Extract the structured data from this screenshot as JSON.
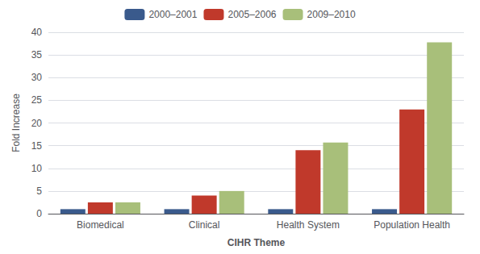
{
  "chart_data": {
    "type": "bar",
    "categories": [
      "Biomedical",
      "Clinical",
      "Health System",
      "Population Health"
    ],
    "series": [
      {
        "name": "2000–2001",
        "color": "#3a5a8c",
        "values": [
          1.0,
          1.0,
          1.0,
          1.0
        ]
      },
      {
        "name": "2005–2006",
        "color": "#c0392b",
        "values": [
          2.5,
          4.0,
          14.0,
          23.0
        ]
      },
      {
        "name": "2009–2010",
        "color": "#a8bf7a",
        "values": [
          2.5,
          5.0,
          15.7,
          37.8
        ]
      }
    ],
    "xlabel": "CIHR Theme",
    "ylabel": "Fold Increase",
    "ylim": [
      0,
      40
    ],
    "yticks": [
      0,
      5,
      10,
      15,
      20,
      25,
      30,
      35,
      40
    ],
    "grid": true,
    "legend": "top"
  }
}
